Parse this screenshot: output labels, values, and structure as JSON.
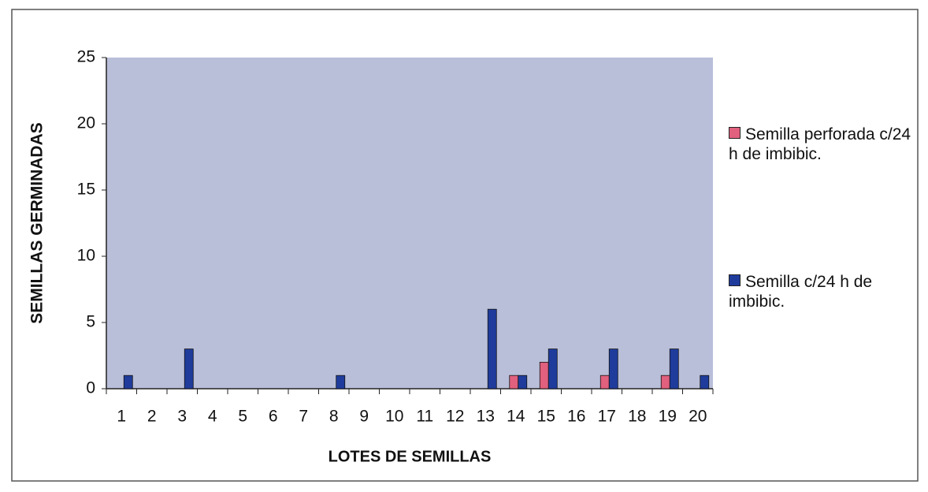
{
  "chart_data": {
    "type": "bar",
    "xlabel": "LOTES DE SEMILLAS",
    "ylabel": "SEMILLAS GERMINADAS",
    "categories": [
      "1",
      "2",
      "3",
      "4",
      "5",
      "6",
      "7",
      "8",
      "9",
      "10",
      "11",
      "12",
      "13",
      "14",
      "15",
      "16",
      "17",
      "18",
      "19",
      "20"
    ],
    "series": [
      {
        "name": "Semilla perforada c/24 h de imbibic.",
        "color": "#e0607e",
        "values": [
          0,
          0,
          0,
          0,
          0,
          0,
          0,
          0,
          0,
          0,
          0,
          0,
          0,
          1,
          2,
          0,
          1,
          0,
          1,
          0
        ]
      },
      {
        "name": "Semilla c/24 h de imbibic.",
        "color": "#1f3c9c",
        "values": [
          1,
          0,
          3,
          0,
          0,
          0,
          0,
          1,
          0,
          0,
          0,
          0,
          6,
          1,
          3,
          0,
          3,
          0,
          3,
          1
        ]
      }
    ],
    "ylim": [
      0,
      25
    ],
    "yticks": [
      0,
      5,
      10,
      15,
      20,
      25
    ],
    "grid": false,
    "legend": "right"
  }
}
